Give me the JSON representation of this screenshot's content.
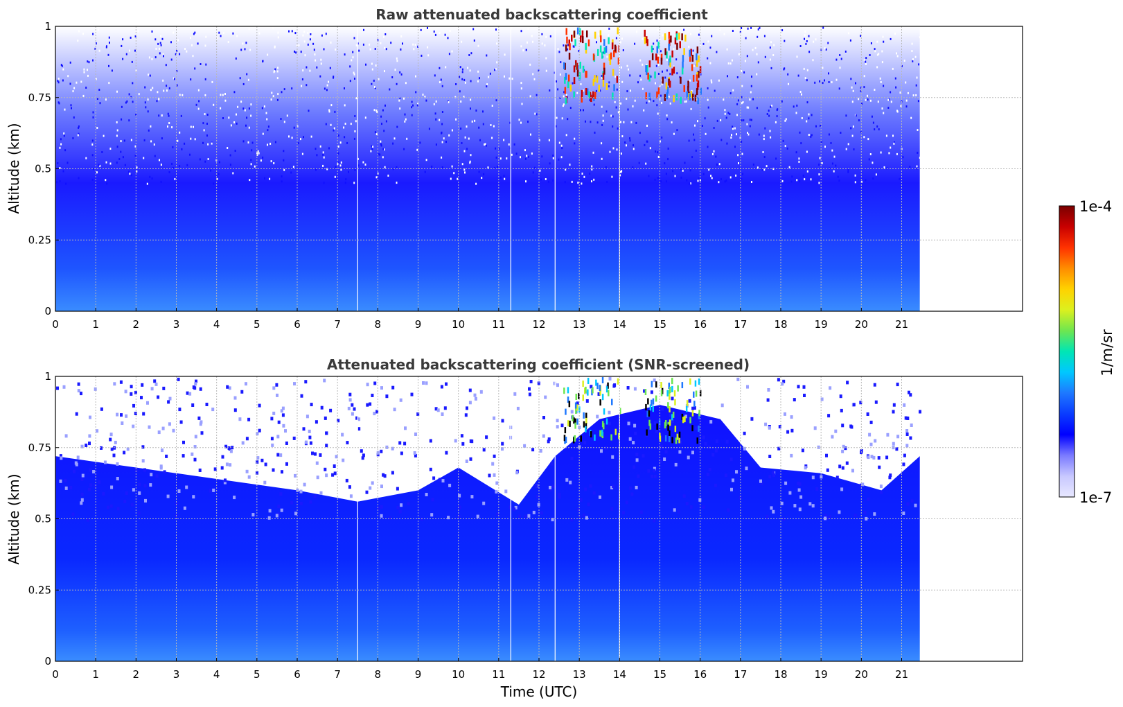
{
  "chart_data": [
    {
      "type": "heatmap",
      "title": "Raw attenuated backscattering coefficient",
      "xlabel": "",
      "ylabel": "Altitude (km)",
      "xlim": [
        0,
        24
      ],
      "ylim": [
        0,
        1
      ],
      "data_xrange": [
        0,
        21.45
      ],
      "x_ticks": [
        "0",
        "1",
        "2",
        "3",
        "4",
        "5",
        "6",
        "7",
        "8",
        "9",
        "10",
        "11",
        "12",
        "13",
        "14",
        "15",
        "16",
        "17",
        "18",
        "19",
        "20",
        "21"
      ],
      "y_ticks": [
        "0",
        "0.25",
        "0.5",
        "0.75",
        "1"
      ],
      "grid": true,
      "data_gaps_utc": [
        7.5,
        11.3,
        12.4,
        14.0
      ],
      "features": [
        {
          "name": "boundary-layer",
          "time_range": [
            0,
            21.45
          ],
          "altitude_km": [
            0,
            0.5
          ]
        },
        {
          "name": "cloud",
          "time_range": [
            12.6,
            14.0
          ],
          "altitude_km": [
            0.75,
            1.0
          ]
        },
        {
          "name": "cloud",
          "time_range": [
            14.6,
            16.0
          ],
          "altitude_km": [
            0.75,
            1.0
          ]
        }
      ]
    },
    {
      "type": "heatmap",
      "title": "Attenuated backscattering coefficient (SNR-screened)",
      "xlabel": "Time (UTC)",
      "ylabel": "Altitude (km)",
      "xlim": [
        0,
        24
      ],
      "ylim": [
        0,
        1
      ],
      "data_xrange": [
        0,
        21.45
      ],
      "x_ticks": [
        "0",
        "1",
        "2",
        "3",
        "4",
        "5",
        "6",
        "7",
        "8",
        "9",
        "10",
        "11",
        "12",
        "13",
        "14",
        "15",
        "16",
        "17",
        "18",
        "19",
        "20",
        "21"
      ],
      "y_ticks": [
        "0",
        "0.25",
        "0.5",
        "0.75",
        "1"
      ],
      "grid": true,
      "data_gaps_utc": [
        7.5,
        11.3,
        12.4,
        14.0
      ],
      "boundary_layer_top_km": [
        {
          "t": 0,
          "h": 0.72
        },
        {
          "t": 2,
          "h": 0.68
        },
        {
          "t": 4,
          "h": 0.64
        },
        {
          "t": 6,
          "h": 0.6
        },
        {
          "t": 7.5,
          "h": 0.56
        },
        {
          "t": 9,
          "h": 0.6
        },
        {
          "t": 10,
          "h": 0.68
        },
        {
          "t": 11.5,
          "h": 0.55
        },
        {
          "t": 12.4,
          "h": 0.72
        },
        {
          "t": 13.5,
          "h": 0.85
        },
        {
          "t": 15,
          "h": 0.9
        },
        {
          "t": 16.5,
          "h": 0.85
        },
        {
          "t": 17.5,
          "h": 0.68
        },
        {
          "t": 19,
          "h": 0.66
        },
        {
          "t": 20.5,
          "h": 0.6
        },
        {
          "t": 21.45,
          "h": 0.72
        }
      ]
    }
  ],
  "colorbar": {
    "label": "1/m/sr",
    "max_label": "1e-4",
    "min_label": "1e-7",
    "colormap": [
      "#e8e8ff",
      "#c8c8ff",
      "#7a7aff",
      "#0000ff",
      "#0a3cff",
      "#1e78ff",
      "#00c8ff",
      "#00e6b4",
      "#6ee650",
      "#dcf01e",
      "#ffd200",
      "#ff8c00",
      "#ff3200",
      "#c80000",
      "#7a0000"
    ]
  }
}
